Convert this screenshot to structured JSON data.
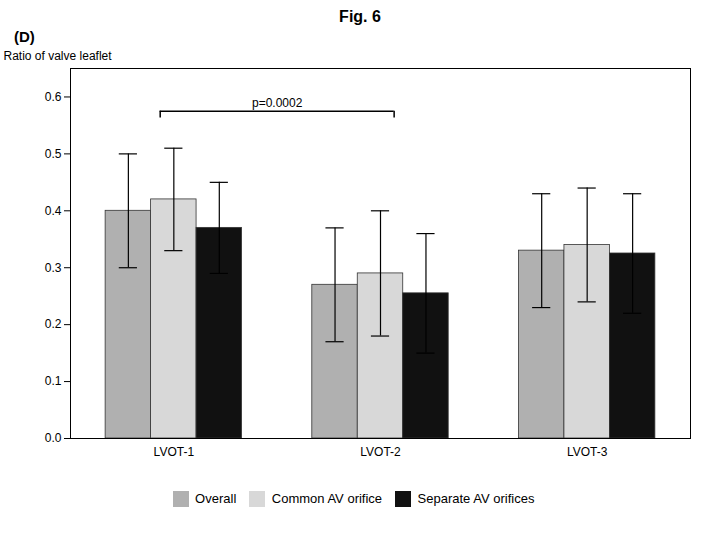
{
  "chart_data": {
    "type": "bar",
    "title": "Fig. 6",
    "ylabel": "Ratio of valve leaflet",
    "categories": [
      "LVOT-1",
      "LVOT-2",
      "LVOT-3"
    ],
    "series": [
      {
        "name": "Overall",
        "color": "#b0b0b0",
        "values": [
          0.4,
          0.27,
          0.33
        ],
        "errors": [
          0.1,
          0.1,
          0.1
        ]
      },
      {
        "name": "Common AV orifice",
        "color": "#d8d8d8",
        "values": [
          0.42,
          0.29,
          0.34
        ],
        "errors": [
          0.09,
          0.11,
          0.1
        ]
      },
      {
        "name": "Separate AV orifices",
        "color": "#111111",
        "values": [
          0.37,
          0.255,
          0.325
        ],
        "errors": [
          0.08,
          0.105,
          0.105
        ]
      }
    ],
    "annotations": [
      {
        "text": "(D)"
      },
      {
        "text": "p=0.0002",
        "from": "LVOT-1",
        "to": "LVOT-2",
        "y": 0.575
      }
    ],
    "ylim": [
      0.0,
      0.65
    ],
    "yticks": [
      {
        "value": 0.0,
        "label": "0.0"
      },
      0.1,
      0.2,
      0.3,
      0.4,
      0.5,
      0.6
    ],
    "grid": false,
    "legend": "bottom"
  }
}
